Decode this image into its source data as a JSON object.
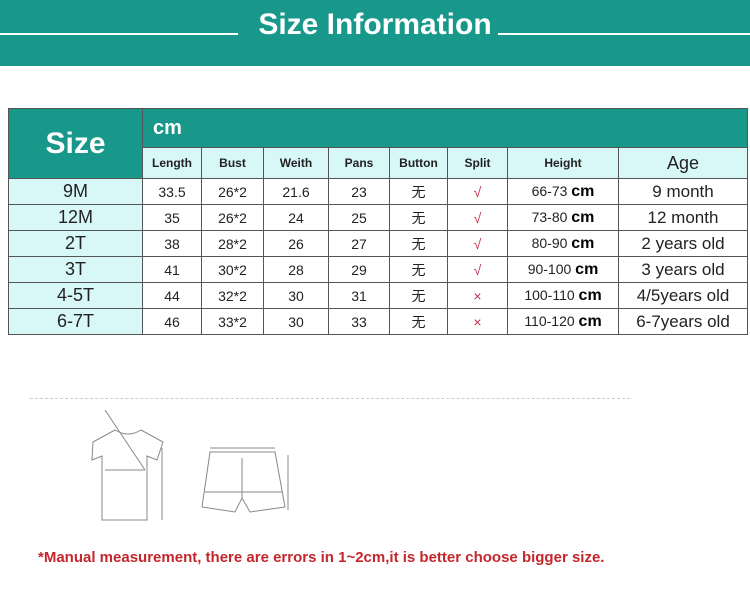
{
  "title": "Size Information",
  "table": {
    "size_label": "Size",
    "unit_label": "cm",
    "columns": [
      "Length",
      "Bust",
      "Weith",
      "Pans",
      "Button",
      "Split",
      "Height",
      "Age"
    ],
    "rows": [
      {
        "size": "9M",
        "length": "33.5",
        "bust": "26*2",
        "weith": "21.6",
        "pans": "23",
        "button": "无",
        "split": "√",
        "height": "66-73",
        "height_unit": "cm",
        "age": "9 month"
      },
      {
        "size": "12M",
        "length": "35",
        "bust": "26*2",
        "weith": "24",
        "pans": "25",
        "button": "无",
        "split": "√",
        "height": "73-80",
        "height_unit": "cm",
        "age": "12 month"
      },
      {
        "size": "2T",
        "length": "38",
        "bust": "28*2",
        "weith": "26",
        "pans": "27",
        "button": "无",
        "split": "√",
        "height": "80-90",
        "height_unit": "cm",
        "age": "2 years old"
      },
      {
        "size": "3T",
        "length": "41",
        "bust": "30*2",
        "weith": "28",
        "pans": "29",
        "button": "无",
        "split": "√",
        "height": "90-100",
        "height_unit": "cm",
        "age": "3 years old"
      },
      {
        "size": "4-5T",
        "length": "44",
        "bust": "32*2",
        "weith": "30",
        "pans": "31",
        "button": "无",
        "split": "×",
        "height": "100-110",
        "height_unit": "cm",
        "age": "4/5years old"
      },
      {
        "size": "6-7T",
        "length": "46",
        "bust": "33*2",
        "weith": "30",
        "pans": "33",
        "button": "无",
        "split": "×",
        "height": "110-120",
        "height_unit": "cm",
        "age": "6-7years old"
      }
    ]
  },
  "note": "*Manual measurement, there are errors in 1~2cm,it is better choose bigger size.",
  "colors": {
    "teal": "#17988b",
    "light": "#d8f7f7",
    "note": "#c4262b"
  }
}
